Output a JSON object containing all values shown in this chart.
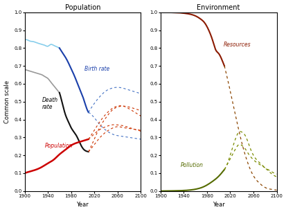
{
  "xlim": [
    1900,
    2100
  ],
  "ylim": [
    0.0,
    1.0
  ],
  "xlabel": "Year",
  "ylabel": "Common scale",
  "title_left": "Population",
  "title_right": "Environment",
  "bg_color": "#ffffff",
  "xticks": [
    1900,
    1940,
    1980,
    2020,
    2060,
    2100
  ],
  "yticks": [
    0.0,
    0.1,
    0.2,
    0.3,
    0.4,
    0.5,
    0.6,
    0.7,
    0.8,
    0.9,
    1.0
  ],
  "birth_light_x": [
    1900,
    1905,
    1910,
    1915,
    1920,
    1925,
    1930,
    1935,
    1940,
    1945,
    1950,
    1955,
    1960
  ],
  "birth_light_y": [
    0.845,
    0.845,
    0.838,
    0.836,
    0.83,
    0.825,
    0.82,
    0.815,
    0.81,
    0.82,
    0.815,
    0.808,
    0.8
  ],
  "birth_dark_x": [
    1960,
    1965,
    1970,
    1975,
    1980,
    1985,
    1990,
    1995,
    2000,
    2005,
    2010
  ],
  "birth_dark_y": [
    0.8,
    0.775,
    0.75,
    0.72,
    0.685,
    0.65,
    0.61,
    0.57,
    0.53,
    0.48,
    0.44
  ],
  "birth_dash1_x": [
    2010,
    2020,
    2030,
    2040,
    2050,
    2060,
    2070,
    2080,
    2090,
    2100
  ],
  "birth_dash1_y": [
    0.44,
    0.49,
    0.53,
    0.56,
    0.575,
    0.58,
    0.575,
    0.565,
    0.555,
    0.545
  ],
  "birth_dash2_x": [
    2010,
    2020,
    2030,
    2040,
    2050,
    2060,
    2070,
    2080,
    2090,
    2100
  ],
  "birth_dash2_y": [
    0.44,
    0.41,
    0.37,
    0.34,
    0.32,
    0.31,
    0.305,
    0.3,
    0.295,
    0.29
  ],
  "death_gray_x": [
    1900,
    1905,
    1910,
    1915,
    1920,
    1925,
    1930,
    1935,
    1940,
    1945,
    1950,
    1955,
    1960
  ],
  "death_gray_y": [
    0.68,
    0.675,
    0.67,
    0.665,
    0.66,
    0.655,
    0.65,
    0.64,
    0.63,
    0.61,
    0.59,
    0.57,
    0.55
  ],
  "death_black_x": [
    1960,
    1965,
    1970,
    1975,
    1980,
    1985,
    1990,
    1995,
    2000,
    2005,
    2010
  ],
  "death_black_y": [
    0.55,
    0.49,
    0.43,
    0.39,
    0.355,
    0.33,
    0.305,
    0.27,
    0.24,
    0.225,
    0.22
  ],
  "death_dash1_x": [
    2010,
    2020,
    2030,
    2040,
    2050,
    2060,
    2070,
    2080,
    2090,
    2100
  ],
  "death_dash1_y": [
    0.22,
    0.29,
    0.36,
    0.41,
    0.45,
    0.47,
    0.475,
    0.47,
    0.46,
    0.45
  ],
  "death_dash2_x": [
    2010,
    2020,
    2030,
    2040,
    2050,
    2060,
    2070,
    2080,
    2090,
    2100
  ],
  "death_dash2_y": [
    0.22,
    0.26,
    0.3,
    0.33,
    0.35,
    0.36,
    0.355,
    0.35,
    0.345,
    0.34
  ],
  "pop_solid_x": [
    1900,
    1910,
    1920,
    1930,
    1940,
    1950,
    1960,
    1970,
    1980,
    1990,
    2000,
    2005,
    2010
  ],
  "pop_solid_y": [
    0.1,
    0.11,
    0.12,
    0.135,
    0.155,
    0.175,
    0.205,
    0.23,
    0.255,
    0.27,
    0.28,
    0.285,
    0.29
  ],
  "pop_dash1_x": [
    2010,
    2020,
    2030,
    2040,
    2050,
    2060,
    2070,
    2080,
    2090,
    2100
  ],
  "pop_dash1_y": [
    0.29,
    0.34,
    0.39,
    0.43,
    0.46,
    0.475,
    0.475,
    0.46,
    0.44,
    0.42
  ],
  "pop_dash2_x": [
    2010,
    2020,
    2030,
    2040,
    2050,
    2060,
    2070,
    2080,
    2090,
    2100
  ],
  "pop_dash2_y": [
    0.29,
    0.32,
    0.345,
    0.36,
    0.37,
    0.37,
    0.365,
    0.355,
    0.345,
    0.335
  ],
  "res_solid_x": [
    1900,
    1910,
    1920,
    1930,
    1940,
    1950,
    1960,
    1970,
    1975,
    1980,
    1985,
    1990,
    1995,
    2000,
    2005,
    2010
  ],
  "res_solid_y": [
    1.0,
    1.0,
    0.999,
    0.998,
    0.995,
    0.99,
    0.98,
    0.96,
    0.945,
    0.92,
    0.885,
    0.84,
    0.79,
    0.77,
    0.74,
    0.7
  ],
  "res_dash_x": [
    2010,
    2020,
    2030,
    2040,
    2050,
    2060,
    2070,
    2080,
    2090,
    2100
  ],
  "res_dash_y": [
    0.7,
    0.56,
    0.41,
    0.27,
    0.16,
    0.085,
    0.045,
    0.02,
    0.01,
    0.005
  ],
  "poll_solid_x": [
    1900,
    1920,
    1940,
    1960,
    1975,
    1990,
    2000,
    2005,
    2010
  ],
  "poll_solid_y": [
    0.0,
    0.001,
    0.003,
    0.01,
    0.025,
    0.055,
    0.082,
    0.1,
    0.12
  ],
  "poll_dash1_x": [
    2010,
    2020,
    2030,
    2035,
    2040,
    2045,
    2050,
    2055,
    2060,
    2070,
    2080,
    2090,
    2100
  ],
  "poll_dash1_y": [
    0.12,
    0.2,
    0.3,
    0.33,
    0.33,
    0.315,
    0.28,
    0.235,
    0.2,
    0.16,
    0.13,
    0.1,
    0.08
  ],
  "poll_dash2_x": [
    2010,
    2020,
    2030,
    2035,
    2040,
    2045,
    2050,
    2060,
    2070,
    2080,
    2090,
    2100
  ],
  "poll_dash2_y": [
    0.12,
    0.18,
    0.24,
    0.26,
    0.255,
    0.24,
    0.215,
    0.175,
    0.15,
    0.13,
    0.11,
    0.095
  ],
  "color_birth_light": "#87CEEB",
  "color_birth_dark": "#1a3faa",
  "color_death_gray": "#999999",
  "color_death_black": "#111111",
  "color_pop": "#cc0000",
  "color_resources": "#8B1A00",
  "color_pollution": "#556B00",
  "color_dash_blue": "#4472c4",
  "color_dash_red": "#cc3300",
  "color_dash_res": "#8B4500",
  "color_dash_poll": "#7a8B00"
}
